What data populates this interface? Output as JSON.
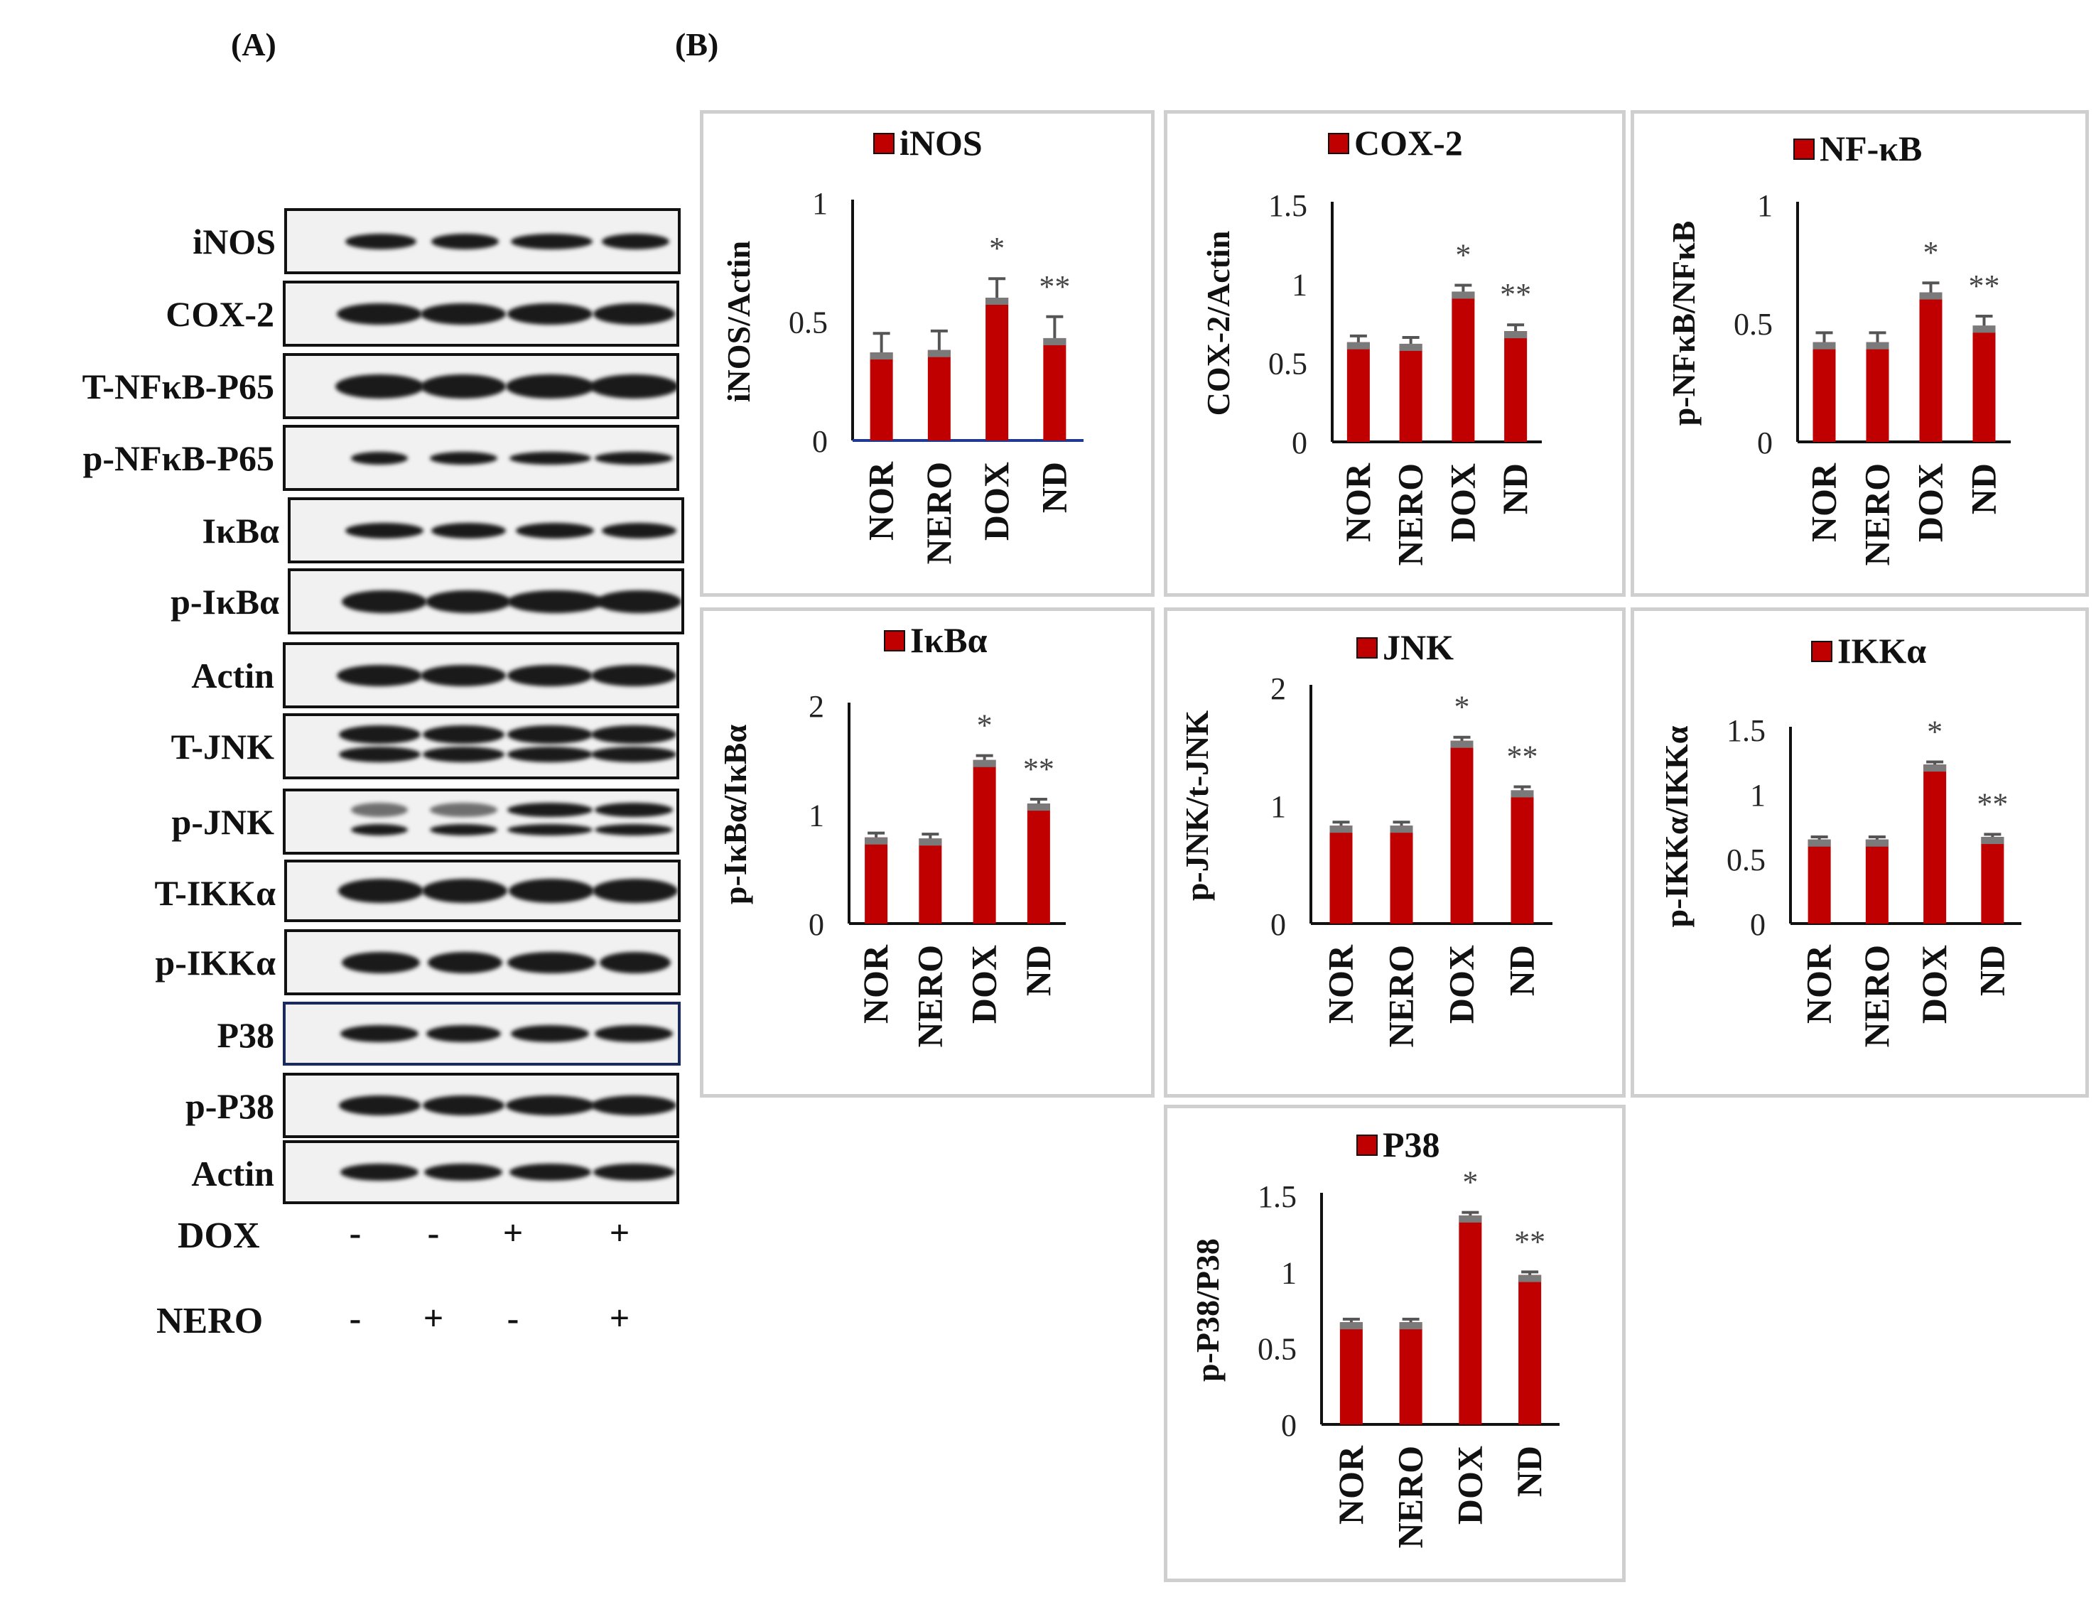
{
  "panels": {
    "a": "(A)",
    "b": "(B)"
  },
  "blot": {
    "proteins": [
      "iNOS",
      "COX-2",
      "T-NFκB-P65",
      "p-NFκB-P65",
      "IκBα",
      "p-IκBα",
      "Actin",
      "T-JNK",
      "p-JNK",
      "T-IKKα",
      "p-IKKα",
      "P38",
      "p-P38",
      "Actin"
    ],
    "treatments": [
      {
        "label": "DOX",
        "signs": [
          "-",
          "-",
          "+",
          "+"
        ]
      },
      {
        "label": "NERO",
        "signs": [
          "-",
          "+",
          "-",
          "+"
        ]
      }
    ]
  },
  "chart_data": [
    {
      "type": "bar",
      "title": "iNOS",
      "legend": "top",
      "ylabel": "iNOS/Actin",
      "categories": [
        "NOR",
        "NERO",
        "DOX",
        "ND"
      ],
      "ticks": [
        "0",
        "0.5",
        "1"
      ],
      "ylim": [
        0,
        1
      ],
      "values": [
        0.37,
        0.38,
        0.6,
        0.43
      ],
      "errors": [
        0.08,
        0.08,
        0.08,
        0.09
      ],
      "annotations": [
        "",
        "",
        "*",
        "**"
      ]
    },
    {
      "type": "bar",
      "title": "COX-2",
      "legend": "top",
      "ylabel": "COX-2/Actin",
      "categories": [
        "NOR",
        "NERO",
        "DOX",
        "ND"
      ],
      "ticks": [
        "0",
        "0.5",
        "1",
        "1.5"
      ],
      "ylim": [
        0,
        1.5
      ],
      "values": [
        0.63,
        0.62,
        0.95,
        0.7
      ],
      "errors": [
        0.04,
        0.04,
        0.04,
        0.04
      ],
      "annotations": [
        "",
        "",
        "*",
        "**"
      ]
    },
    {
      "type": "bar",
      "title": "NF-κB",
      "legend": "top",
      "ylabel": "p-NFκB/NFκB",
      "categories": [
        "NOR",
        "NERO",
        "DOX",
        "ND"
      ],
      "ticks": [
        "0",
        "0.5",
        "1"
      ],
      "ylim": [
        0,
        1
      ],
      "values": [
        0.42,
        0.42,
        0.63,
        0.49
      ],
      "errors": [
        0.04,
        0.04,
        0.04,
        0.04
      ],
      "annotations": [
        "",
        "",
        "*",
        "**"
      ]
    },
    {
      "type": "bar",
      "title": "IκBα",
      "legend": "top",
      "ylabel": "p-IκBα/IκBα",
      "categories": [
        "NOR",
        "NERO",
        "DOX",
        "ND"
      ],
      "ticks": [
        "0",
        "1",
        "2"
      ],
      "ylim": [
        0,
        2
      ],
      "values": [
        0.79,
        0.78,
        1.5,
        1.1
      ],
      "errors": [
        0.04,
        0.04,
        0.04,
        0.04
      ],
      "annotations": [
        "",
        "",
        "*",
        "**"
      ]
    },
    {
      "type": "bar",
      "title": "JNK",
      "legend": "top",
      "ylabel": "p-JNK/t-JNK",
      "categories": [
        "NOR",
        "NERO",
        "DOX",
        "ND"
      ],
      "ticks": [
        "0",
        "1",
        "2"
      ],
      "ylim": [
        0,
        2
      ],
      "values": [
        0.83,
        0.83,
        1.55,
        1.13
      ],
      "errors": [
        0.03,
        0.03,
        0.03,
        0.03
      ],
      "annotations": [
        "",
        "",
        "*",
        "**"
      ]
    },
    {
      "type": "bar",
      "title": "IKKα",
      "legend": "top",
      "ylabel": "p-IKKα/IKKα",
      "categories": [
        "NOR",
        "NERO",
        "DOX",
        "ND"
      ],
      "ticks": [
        "0",
        "0.5",
        "1",
        "1.5"
      ],
      "ylim": [
        0,
        1.5
      ],
      "values": [
        0.65,
        0.65,
        1.23,
        0.67
      ],
      "errors": [
        0.02,
        0.02,
        0.02,
        0.02
      ],
      "annotations": [
        "",
        "",
        "*",
        "**"
      ]
    },
    {
      "type": "bar",
      "title": "P38",
      "legend": "top",
      "ylabel": "p-P38/P38",
      "categories": [
        "NOR",
        "NERO",
        "DOX",
        "ND"
      ],
      "ticks": [
        "0",
        "0.5",
        "1",
        "1.5"
      ],
      "ylim": [
        0,
        1.5
      ],
      "values": [
        0.67,
        0.67,
        1.37,
        0.98
      ],
      "errors": [
        0.02,
        0.02,
        0.02,
        0.02
      ],
      "annotations": [
        "",
        "",
        "*",
        "**"
      ]
    }
  ],
  "colors": {
    "bar": "#c00000",
    "bar_cap": "#7a7a7a",
    "error": "#555555",
    "axis": "#111111",
    "panel_border": "#cfcfcf",
    "inos_axis": "#1f3a93"
  }
}
